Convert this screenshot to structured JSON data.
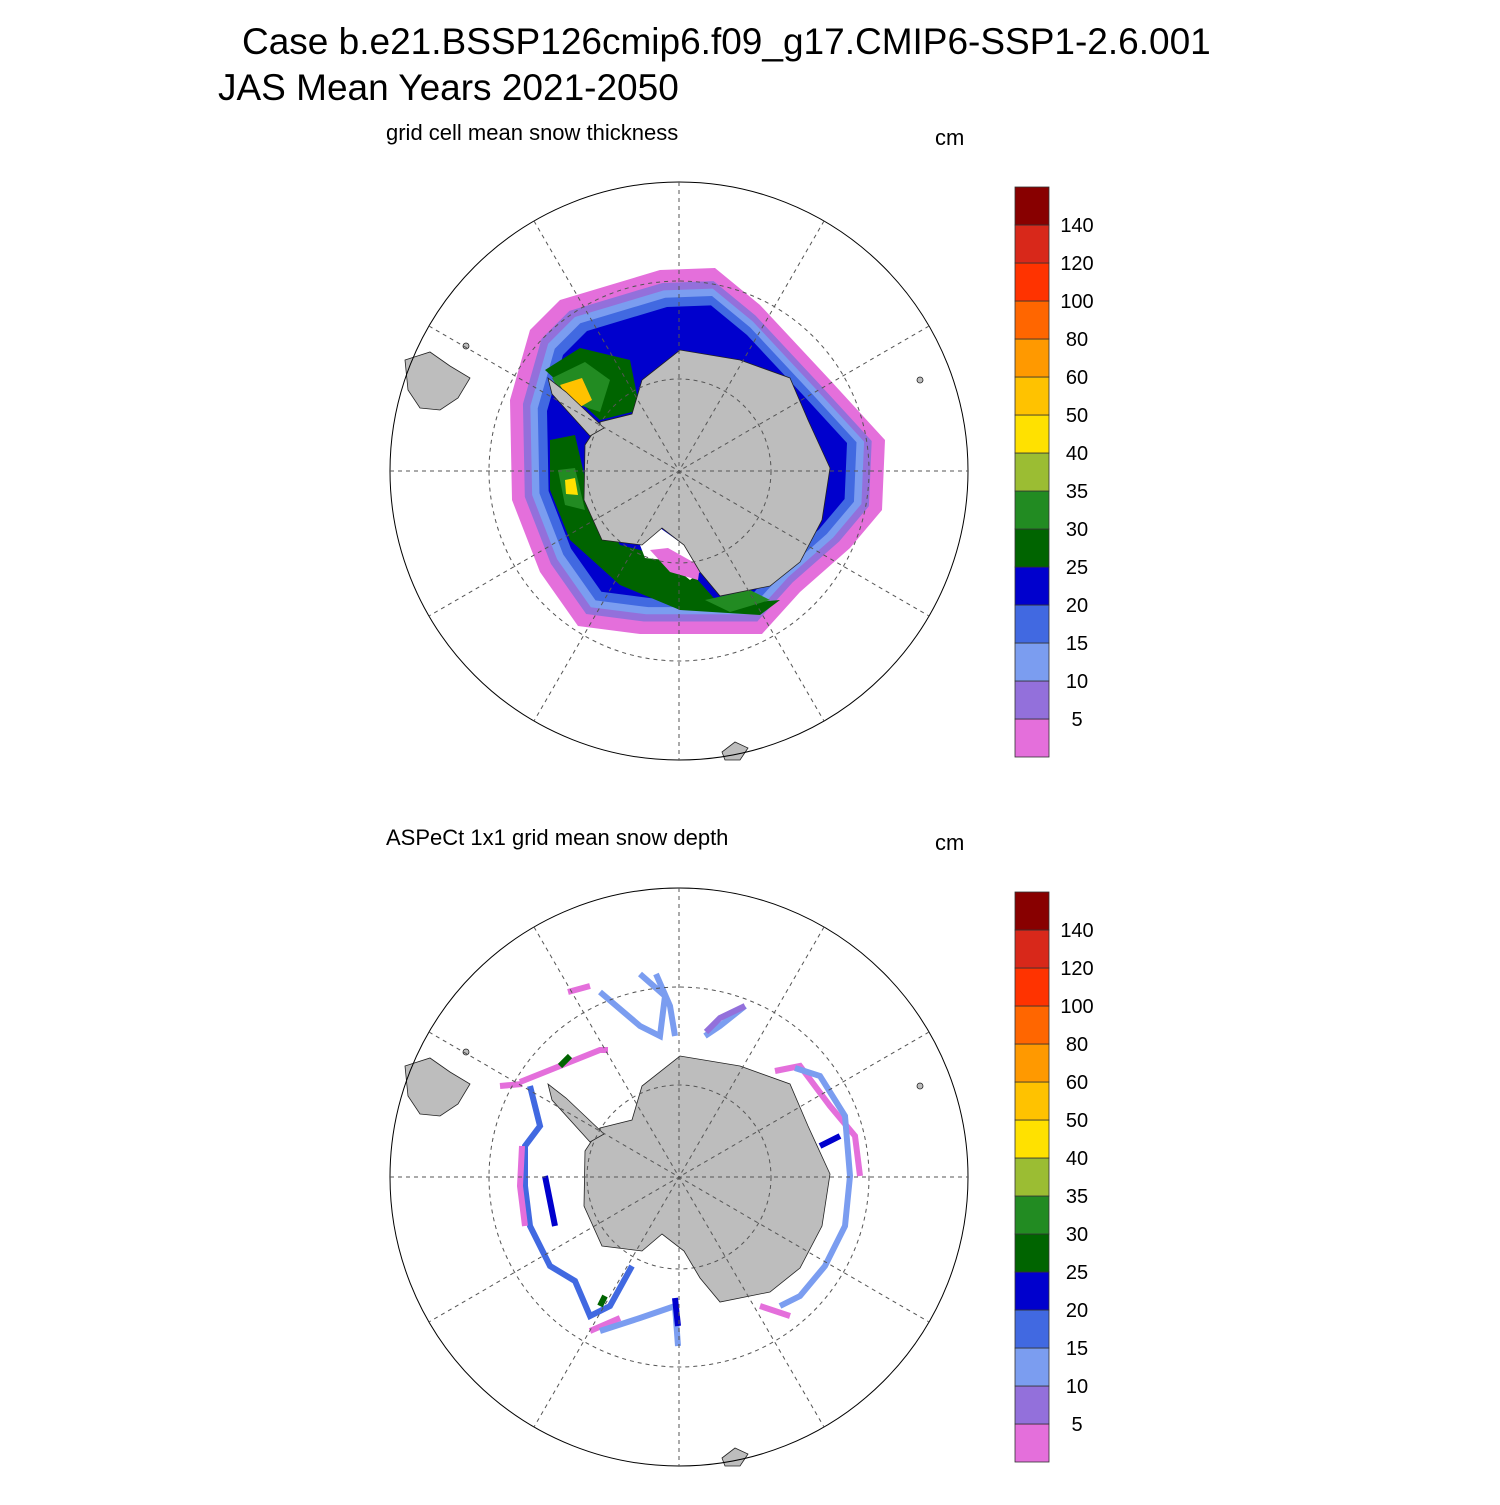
{
  "header": {
    "line1": "Case b.e21.BSSP126cmip6.f09_g17.CMIP6-SSP1-2.6.001",
    "line2": "JAS Mean   Years 2021-2050"
  },
  "panels": [
    {
      "title": "grid cell mean snow thickness",
      "units": "cm"
    },
    {
      "title": "ASPeCt 1x1 grid mean snow depth",
      "units": "cm"
    }
  ],
  "colorbar": {
    "levels": [
      5,
      10,
      15,
      20,
      25,
      30,
      35,
      40,
      50,
      60,
      80,
      100,
      120,
      140
    ],
    "colors": [
      "#e46fdb",
      "#9370db",
      "#7b9df0",
      "#4169e1",
      "#0000cd",
      "#006400",
      "#228b22",
      "#9bbd33",
      "#ffe100",
      "#ffc200",
      "#ff9900",
      "#ff6600",
      "#ff3300",
      "#d8281a",
      "#880000"
    ]
  }
}
